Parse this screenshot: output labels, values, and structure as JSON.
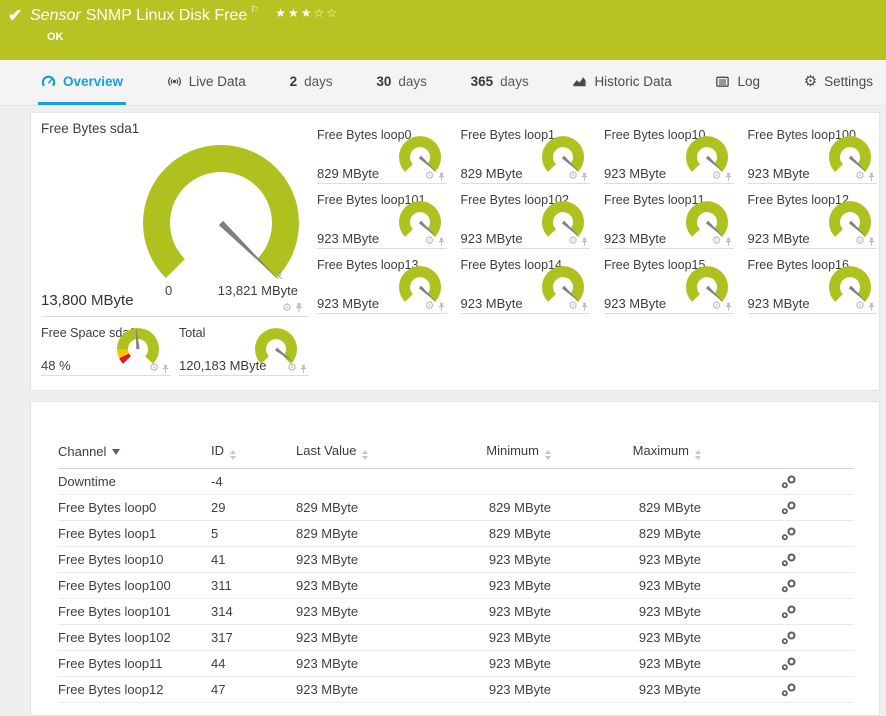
{
  "header": {
    "kind_label": "Sensor",
    "title": "SNMP Linux Disk Free",
    "status": "OK",
    "stars": "★★★☆☆",
    "rating_filled": 3,
    "rating_total": 5
  },
  "icons": {
    "status_check": "✔",
    "flag": "⚐",
    "gear": "⚙",
    "mini_gear": "⚙"
  },
  "colors": {
    "header_green": "#b6c322",
    "gauge_green": "#afc11f",
    "tab_active_blue": "#17a1d9",
    "alert_red": "#d71920",
    "warn_yellow": "#ffc400"
  },
  "tabs": [
    {
      "label": "Overview",
      "active": true
    },
    {
      "label": "Live Data"
    },
    {
      "num": "2",
      "word": "days"
    },
    {
      "num": "30",
      "word": "days"
    },
    {
      "num": "365",
      "word": "days"
    },
    {
      "label": "Historic Data"
    },
    {
      "label": "Log"
    },
    {
      "label": "Settings"
    }
  ],
  "gauges": {
    "primary": {
      "name": "Free Bytes sda1",
      "value": "13,800 MByte",
      "min_label": "0",
      "max_label": "13,821 MByte",
      "percent": 99.8,
      "avg_marker": "x̄"
    },
    "small": [
      {
        "name": "Free Bytes loop0",
        "value": "829 MByte",
        "percent": 99
      },
      {
        "name": "Free Bytes loop1",
        "value": "829 MByte",
        "percent": 99
      },
      {
        "name": "Free Bytes loop10",
        "value": "923 MByte",
        "percent": 99
      },
      {
        "name": "Free Bytes loop100",
        "value": "923 MByte",
        "percent": 99
      },
      {
        "name": "Free Bytes loop101",
        "value": "923 MByte",
        "percent": 99
      },
      {
        "name": "Free Bytes loop102",
        "value": "923 MByte",
        "percent": 99
      },
      {
        "name": "Free Bytes loop11",
        "value": "923 MByte",
        "percent": 99
      },
      {
        "name": "Free Bytes loop12",
        "value": "923 MByte",
        "percent": 99
      },
      {
        "name": "Free Bytes loop13",
        "value": "923 MByte",
        "percent": 99
      },
      {
        "name": "Free Bytes loop14",
        "value": "923 MByte",
        "percent": 99
      },
      {
        "name": "Free Bytes loop15",
        "value": "923 MByte",
        "percent": 99
      },
      {
        "name": "Free Bytes loop16",
        "value": "923 MByte",
        "percent": 99
      }
    ],
    "bottom": [
      {
        "name": "Free Space sda1",
        "value": "48 %",
        "percent": 48,
        "segments": [
          {
            "to": 7,
            "color": "#d71920"
          },
          {
            "to": 16,
            "color": "#ffc400"
          },
          {
            "to": 100,
            "color": "#afc11f"
          }
        ]
      },
      {
        "name": "Total",
        "value": "120,183 MByte",
        "percent": 97
      }
    ]
  },
  "table": {
    "columns": [
      {
        "label": "Channel",
        "sorted": "desc"
      },
      {
        "label": "ID"
      },
      {
        "label": "Last Value"
      },
      {
        "label": "Minimum"
      },
      {
        "label": "Maximum"
      }
    ],
    "rows": [
      {
        "channel": "Downtime",
        "id": "-4",
        "last": "",
        "min": "",
        "max": ""
      },
      {
        "channel": "Free Bytes loop0",
        "id": "29",
        "last": "829 MByte",
        "min": "829 MByte",
        "max": "829 MByte"
      },
      {
        "channel": "Free Bytes loop1",
        "id": "5",
        "last": "829 MByte",
        "min": "829 MByte",
        "max": "829 MByte"
      },
      {
        "channel": "Free Bytes loop10",
        "id": "41",
        "last": "923 MByte",
        "min": "923 MByte",
        "max": "923 MByte"
      },
      {
        "channel": "Free Bytes loop100",
        "id": "311",
        "last": "923 MByte",
        "min": "923 MByte",
        "max": "923 MByte"
      },
      {
        "channel": "Free Bytes loop101",
        "id": "314",
        "last": "923 MByte",
        "min": "923 MByte",
        "max": "923 MByte"
      },
      {
        "channel": "Free Bytes loop102",
        "id": "317",
        "last": "923 MByte",
        "min": "923 MByte",
        "max": "923 MByte"
      },
      {
        "channel": "Free Bytes loop11",
        "id": "44",
        "last": "923 MByte",
        "min": "923 MByte",
        "max": "923 MByte"
      },
      {
        "channel": "Free Bytes loop12",
        "id": "47",
        "last": "923 MByte",
        "min": "923 MByte",
        "max": "923 MByte"
      }
    ]
  }
}
